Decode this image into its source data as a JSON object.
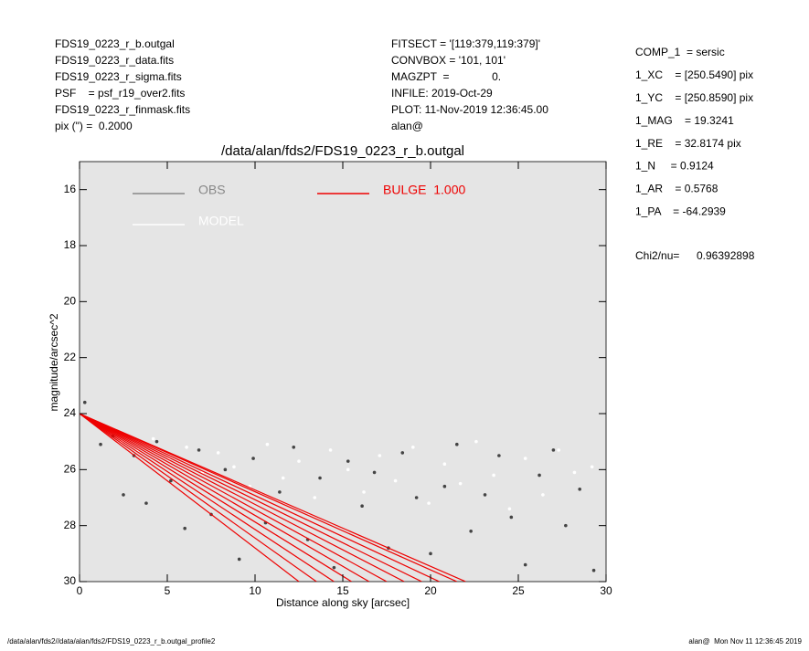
{
  "header": {
    "left": [
      "FDS19_0223_r_b.outgal",
      "FDS19_0223_r_data.fits",
      "FDS19_0223_r_sigma.fits",
      "PSF    = psf_r19_over2.fits",
      "FDS19_0223_r_finmask.fits",
      "pix (\") =  0.2000"
    ],
    "middle": [
      "FITSECT = '[119:379,119:379]'",
      "CONVBOX = '101, 101'",
      "MAGZPT  =              0.",
      "INFILE: 2019-Oct-29",
      "PLOT: 11-Nov-2019 12:36:45.00",
      "alan@"
    ],
    "right": [
      "COMP_1  = sersic",
      "1_XC    = [250.5490] pix",
      "1_YC    = [250.8590] pix",
      "1_MAG    = 19.3241",
      "1_RE    = 32.8174 pix",
      "1_N     = 0.9124",
      "1_AR    = 0.5768",
      "1_PA    = -64.2939"
    ],
    "chi2_label": "Chi2/nu=",
    "chi2_value": "0.96392898"
  },
  "footer": {
    "left": "/data/alan/fds2//data/alan/fds2/FDS19_0223_r_b.outgal_profile2",
    "right": "alan@  Mon Nov 11 12:36:45 2019"
  },
  "chart_data": {
    "type": "scatter",
    "title": "/data/alan/fds2/FDS19_0223_r_b.outgal",
    "x_label": "Distance along sky [arcsec]",
    "y_label": "magnitude/arcsec^2",
    "xlim": [
      0,
      30
    ],
    "xticks": [
      0,
      5,
      10,
      15,
      20,
      25,
      30
    ],
    "ylim": [
      15,
      30
    ],
    "yticks": [
      16,
      18,
      20,
      22,
      24,
      26,
      28,
      30
    ],
    "y_inverted": true,
    "background": "#e5e5e5",
    "series": [
      {
        "name": "OBS",
        "color": "#444444",
        "legend_color": "#888888",
        "kind": "points",
        "x": [
          0.3,
          0.8,
          1.2,
          1.9,
          2.5,
          3.1,
          3.8,
          4.4,
          5.2,
          6.0,
          6.8,
          7.5,
          8.3,
          9.1,
          9.9,
          10.6,
          11.4,
          12.2,
          13.0,
          13.7,
          14.5,
          15.3,
          16.1,
          16.8,
          17.6,
          18.4,
          19.2,
          20.0,
          20.8,
          21.5,
          22.3,
          23.1,
          23.9,
          24.6,
          25.4,
          26.2,
          27.0,
          27.7,
          28.5,
          29.3
        ],
        "values": [
          23.6,
          24.3,
          25.1,
          24.8,
          26.9,
          25.5,
          27.2,
          25.0,
          26.4,
          28.1,
          25.3,
          27.6,
          26.0,
          29.2,
          25.6,
          27.9,
          26.8,
          25.2,
          28.5,
          26.3,
          29.5,
          25.7,
          27.3,
          26.1,
          28.8,
          25.4,
          27.0,
          29.0,
          26.6,
          25.1,
          28.2,
          26.9,
          25.5,
          27.7,
          29.4,
          26.2,
          25.3,
          28.0,
          26.7,
          29.6
        ]
      },
      {
        "name": "MODEL",
        "color": "#ffffff",
        "legend_color": "#ffffff",
        "kind": "points",
        "x": [
          0.5,
          1.5,
          2.4,
          3.3,
          4.2,
          5.1,
          6.1,
          7.0,
          7.9,
          8.8,
          9.7,
          10.7,
          11.6,
          12.5,
          13.4,
          14.3,
          15.3,
          16.2,
          17.1,
          18.0,
          19.0,
          19.9,
          20.8,
          21.7,
          22.6,
          23.6,
          24.5,
          25.4,
          26.4,
          27.3,
          28.2,
          29.2
        ],
        "values": [
          24.2,
          24.6,
          25.0,
          25.3,
          24.9,
          25.6,
          25.2,
          26.1,
          25.4,
          25.9,
          26.6,
          25.1,
          26.3,
          25.7,
          27.0,
          25.3,
          26.0,
          26.8,
          25.5,
          26.4,
          25.2,
          27.2,
          25.8,
          26.5,
          25.0,
          26.2,
          27.4,
          25.6,
          26.9,
          25.3,
          26.1,
          25.9
        ]
      },
      {
        "name": "BULGE  1.000",
        "color": "#ee0000",
        "legend_color": "#ee0000",
        "kind": "fan",
        "x0": 0,
        "y0": 24,
        "y_end": 30,
        "x_end": [
          12.5,
          13.5,
          14.5,
          15.5,
          16.5,
          17.5,
          18.5,
          19.5,
          20.5,
          21.5,
          22
        ]
      }
    ]
  }
}
